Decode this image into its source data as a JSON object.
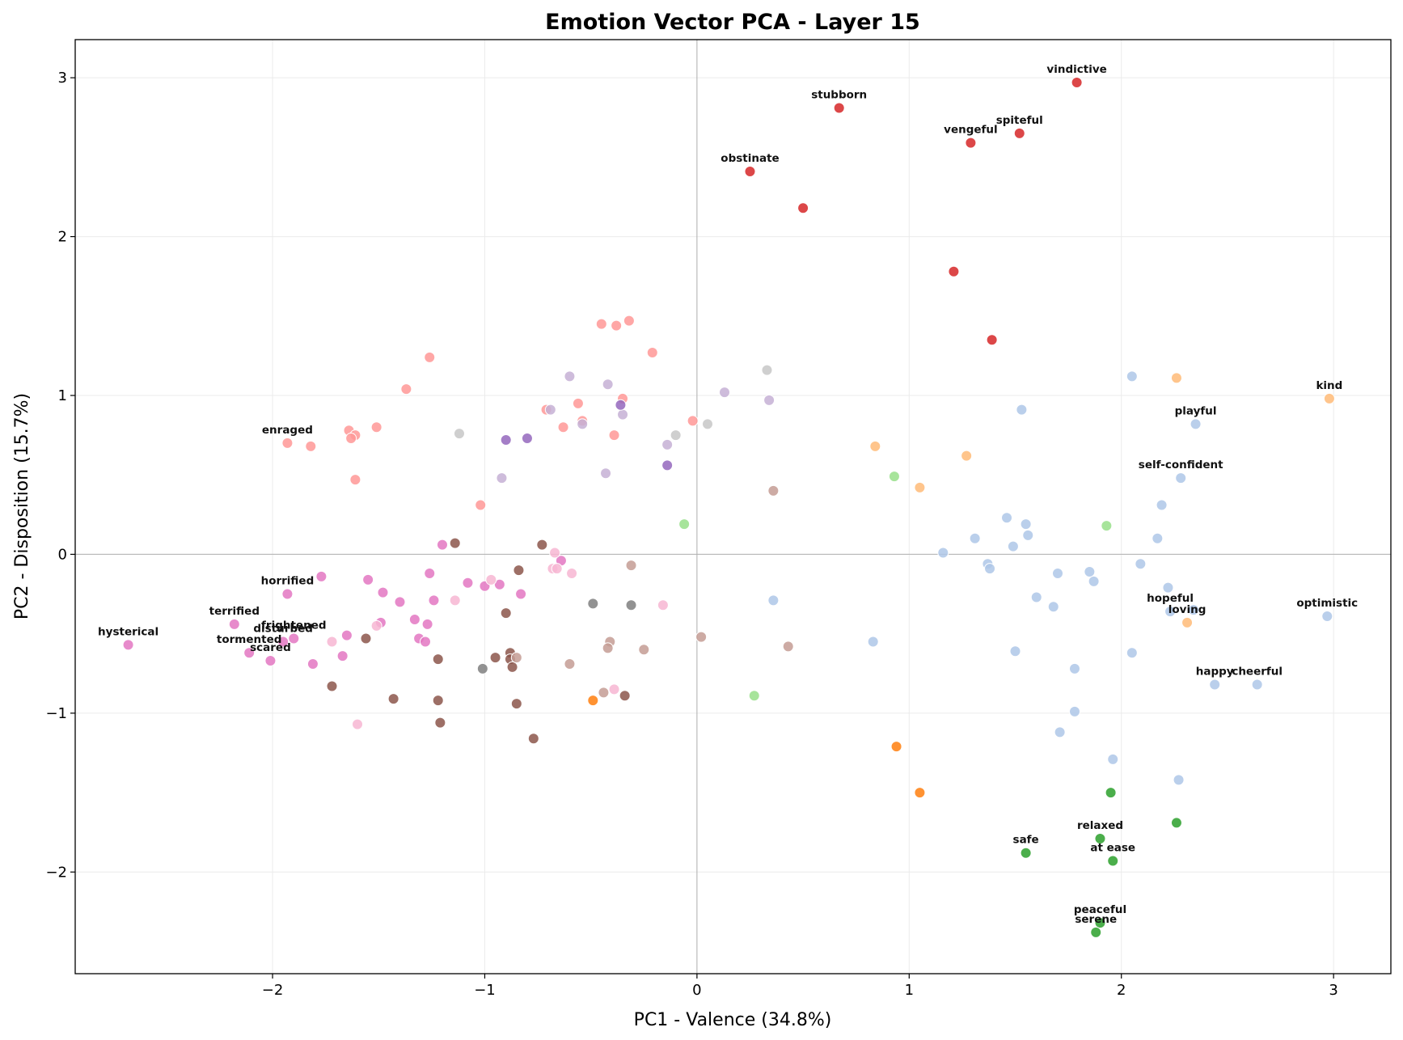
{
  "chart_data": {
    "type": "scatter",
    "title": "Emotion Vector PCA - Layer 15",
    "xlabel": "PC1 - Valence (34.8%)",
    "ylabel": "PC2 - Disposition (15.7%)",
    "xlim": [
      -2.93,
      3.27
    ],
    "ylim": [
      -2.64,
      3.24
    ],
    "xticks": [
      -2,
      -1,
      0,
      1,
      2,
      3
    ],
    "yticks": [
      -2,
      -1,
      0,
      1,
      2,
      3
    ],
    "xtick_labels": [
      "−2",
      "−1",
      "0",
      "1",
      "2",
      "3"
    ],
    "ytick_labels": [
      "−2",
      "−1",
      "0",
      "1",
      "2",
      "3"
    ],
    "grid": true,
    "zero_lines": true,
    "legend": "none",
    "series": [
      {
        "color": "#d62728",
        "points": [
          {
            "x": 1.79,
            "y": 2.97,
            "label": "vindictive"
          },
          {
            "x": 0.67,
            "y": 2.81,
            "label": "stubborn"
          },
          {
            "x": 1.52,
            "y": 2.65,
            "label": "spiteful"
          },
          {
            "x": 1.29,
            "y": 2.59,
            "label": "vengeful"
          },
          {
            "x": 0.25,
            "y": 2.41,
            "label": "obstinate"
          },
          {
            "x": 0.5,
            "y": 2.18
          },
          {
            "x": 1.21,
            "y": 1.78
          },
          {
            "x": 1.39,
            "y": 1.35
          }
        ]
      },
      {
        "color": "#ff9896",
        "points": [
          {
            "x": -0.45,
            "y": 1.45
          },
          {
            "x": -0.32,
            "y": 1.47
          },
          {
            "x": -0.38,
            "y": 1.44
          },
          {
            "x": -1.26,
            "y": 1.24
          },
          {
            "x": -0.21,
            "y": 1.27
          },
          {
            "x": -1.37,
            "y": 1.04
          },
          {
            "x": -0.35,
            "y": 0.98
          },
          {
            "x": -0.56,
            "y": 0.95
          },
          {
            "x": -0.71,
            "y": 0.91
          },
          {
            "x": -0.54,
            "y": 0.84
          },
          {
            "x": -0.63,
            "y": 0.8
          },
          {
            "x": -0.02,
            "y": 0.84
          },
          {
            "x": -1.51,
            "y": 0.8
          },
          {
            "x": -1.64,
            "y": 0.78
          },
          {
            "x": -1.61,
            "y": 0.75
          },
          {
            "x": -1.63,
            "y": 0.73
          },
          {
            "x": -0.39,
            "y": 0.75
          },
          {
            "x": -1.93,
            "y": 0.7,
            "label": "enraged"
          },
          {
            "x": -1.82,
            "y": 0.68
          },
          {
            "x": -1.61,
            "y": 0.47
          },
          {
            "x": -1.02,
            "y": 0.31
          }
        ]
      },
      {
        "color": "#c5b0d5",
        "points": [
          {
            "x": -0.6,
            "y": 1.12
          },
          {
            "x": -0.42,
            "y": 1.07
          },
          {
            "x": 0.13,
            "y": 1.02
          },
          {
            "x": 0.34,
            "y": 0.97
          },
          {
            "x": -0.69,
            "y": 0.91
          },
          {
            "x": -0.35,
            "y": 0.88
          },
          {
            "x": -0.54,
            "y": 0.82
          },
          {
            "x": -0.14,
            "y": 0.69
          },
          {
            "x": -0.43,
            "y": 0.51
          },
          {
            "x": -0.92,
            "y": 0.48
          }
        ]
      },
      {
        "color": "#9467bd",
        "points": [
          {
            "x": -0.36,
            "y": 0.94
          },
          {
            "x": -0.9,
            "y": 0.72
          },
          {
            "x": -0.8,
            "y": 0.73
          },
          {
            "x": -0.14,
            "y": 0.56
          }
        ]
      },
      {
        "color": "#c7c7c7",
        "points": [
          {
            "x": 0.33,
            "y": 1.16
          },
          {
            "x": -1.12,
            "y": 0.76
          },
          {
            "x": -0.1,
            "y": 0.75
          },
          {
            "x": 0.05,
            "y": 0.82
          }
        ]
      },
      {
        "color": "#7f7f7f",
        "points": [
          {
            "x": -0.49,
            "y": -0.31
          },
          {
            "x": -0.31,
            "y": -0.32
          },
          {
            "x": -1.01,
            "y": -0.72
          }
        ]
      },
      {
        "color": "#ffbb78",
        "points": [
          {
            "x": 2.26,
            "y": 1.11
          },
          {
            "x": 2.98,
            "y": 0.98,
            "label": "kind"
          },
          {
            "x": 0.84,
            "y": 0.68
          },
          {
            "x": 1.27,
            "y": 0.62
          },
          {
            "x": 1.05,
            "y": 0.42
          },
          {
            "x": 2.31,
            "y": -0.43,
            "label": "loving"
          }
        ]
      },
      {
        "color": "#ff7f0e",
        "points": [
          {
            "x": -0.49,
            "y": -0.92
          },
          {
            "x": 0.94,
            "y": -1.21
          },
          {
            "x": 1.05,
            "y": -1.5
          }
        ]
      },
      {
        "color": "#98df8a",
        "points": [
          {
            "x": 0.93,
            "y": 0.49
          },
          {
            "x": -0.06,
            "y": 0.19
          },
          {
            "x": 1.93,
            "y": 0.18
          },
          {
            "x": 0.27,
            "y": -0.89
          }
        ]
      },
      {
        "color": "#2ca02c",
        "points": [
          {
            "x": 1.95,
            "y": -1.5
          },
          {
            "x": 2.26,
            "y": -1.69
          },
          {
            "x": 1.9,
            "y": -1.79,
            "label": "relaxed"
          },
          {
            "x": 1.55,
            "y": -1.88,
            "label": "safe"
          },
          {
            "x": 1.96,
            "y": -1.93,
            "label": "at ease"
          },
          {
            "x": 1.9,
            "y": -2.32,
            "label": "peaceful"
          },
          {
            "x": 1.88,
            "y": -2.38,
            "label": "serene"
          }
        ]
      },
      {
        "color": "#aec7e8",
        "points": [
          {
            "x": 2.05,
            "y": 1.12
          },
          {
            "x": 1.53,
            "y": 0.91
          },
          {
            "x": 2.35,
            "y": 0.82,
            "label": "playful"
          },
          {
            "x": 2.28,
            "y": 0.48,
            "label": "self-confident"
          },
          {
            "x": 2.19,
            "y": 0.31
          },
          {
            "x": 1.46,
            "y": 0.23
          },
          {
            "x": 1.55,
            "y": 0.19
          },
          {
            "x": 1.56,
            "y": 0.12
          },
          {
            "x": 1.31,
            "y": 0.1
          },
          {
            "x": 2.17,
            "y": 0.1
          },
          {
            "x": 1.49,
            "y": 0.05
          },
          {
            "x": 1.16,
            "y": 0.01
          },
          {
            "x": 1.37,
            "y": -0.06
          },
          {
            "x": 1.38,
            "y": -0.09
          },
          {
            "x": 2.09,
            "y": -0.06
          },
          {
            "x": 1.7,
            "y": -0.12
          },
          {
            "x": 1.85,
            "y": -0.11
          },
          {
            "x": 1.87,
            "y": -0.17
          },
          {
            "x": 2.22,
            "y": -0.21
          },
          {
            "x": 1.6,
            "y": -0.27
          },
          {
            "x": 0.36,
            "y": -0.29
          },
          {
            "x": 1.68,
            "y": -0.33
          },
          {
            "x": 2.23,
            "y": -0.36,
            "label": "hopeful"
          },
          {
            "x": 2.34,
            "y": -0.35
          },
          {
            "x": 2.97,
            "y": -0.39,
            "label": "optimistic"
          },
          {
            "x": 0.83,
            "y": -0.55
          },
          {
            "x": 1.5,
            "y": -0.61
          },
          {
            "x": 2.05,
            "y": -0.62
          },
          {
            "x": 1.78,
            "y": -0.72
          },
          {
            "x": 2.44,
            "y": -0.82,
            "label": "happy"
          },
          {
            "x": 2.64,
            "y": -0.82,
            "label": "cheerful"
          },
          {
            "x": 1.78,
            "y": -0.99
          },
          {
            "x": 1.71,
            "y": -1.12
          },
          {
            "x": 1.96,
            "y": -1.29
          },
          {
            "x": 2.27,
            "y": -1.42
          }
        ]
      },
      {
        "color": "#e377c2",
        "points": [
          {
            "x": -2.68,
            "y": -0.57,
            "label": "hysterical"
          },
          {
            "x": -2.18,
            "y": -0.44,
            "label": "terrified"
          },
          {
            "x": -2.11,
            "y": -0.62,
            "label": "tormented"
          },
          {
            "x": -2.01,
            "y": -0.67,
            "label": "scared"
          },
          {
            "x": -1.93,
            "y": -0.25,
            "label": "horrified"
          },
          {
            "x": -1.9,
            "y": -0.53,
            "label": "frightened"
          },
          {
            "x": -1.95,
            "y": -0.55,
            "label": "disturbed"
          },
          {
            "x": -1.77,
            "y": -0.14
          },
          {
            "x": -1.81,
            "y": -0.69
          },
          {
            "x": -1.65,
            "y": -0.51
          },
          {
            "x": -1.67,
            "y": -0.64
          },
          {
            "x": -1.55,
            "y": -0.16
          },
          {
            "x": -1.48,
            "y": -0.24
          },
          {
            "x": -1.49,
            "y": -0.43
          },
          {
            "x": -1.4,
            "y": -0.3
          },
          {
            "x": -1.33,
            "y": -0.41
          },
          {
            "x": -1.31,
            "y": -0.53
          },
          {
            "x": -1.28,
            "y": -0.55
          },
          {
            "x": -1.27,
            "y": -0.44
          },
          {
            "x": -1.26,
            "y": -0.12
          },
          {
            "x": -1.24,
            "y": -0.29
          },
          {
            "x": -1.2,
            "y": 0.06
          },
          {
            "x": -1.08,
            "y": -0.18
          },
          {
            "x": -1.0,
            "y": -0.2
          },
          {
            "x": -0.93,
            "y": -0.19
          },
          {
            "x": -0.83,
            "y": -0.25
          },
          {
            "x": -0.64,
            "y": -0.04
          }
        ]
      },
      {
        "color": "#f7b6d2",
        "points": [
          {
            "x": -1.6,
            "y": -1.07
          },
          {
            "x": -1.72,
            "y": -0.55
          },
          {
            "x": -1.51,
            "y": -0.45
          },
          {
            "x": -1.14,
            "y": -0.29
          },
          {
            "x": -0.97,
            "y": -0.16
          },
          {
            "x": -0.67,
            "y": 0.01
          },
          {
            "x": -0.68,
            "y": -0.09
          },
          {
            "x": -0.66,
            "y": -0.09
          },
          {
            "x": -0.59,
            "y": -0.12
          },
          {
            "x": -0.16,
            "y": -0.32
          },
          {
            "x": -0.39,
            "y": -0.85
          }
        ]
      },
      {
        "color": "#8c564b",
        "points": [
          {
            "x": -1.14,
            "y": 0.07
          },
          {
            "x": -0.73,
            "y": 0.06
          },
          {
            "x": -0.84,
            "y": -0.1
          },
          {
            "x": -0.9,
            "y": -0.37
          },
          {
            "x": -1.56,
            "y": -0.53
          },
          {
            "x": -0.95,
            "y": -0.65
          },
          {
            "x": -0.88,
            "y": -0.62
          },
          {
            "x": -0.88,
            "y": -0.66
          },
          {
            "x": -0.87,
            "y": -0.71
          },
          {
            "x": -1.22,
            "y": -0.66
          },
          {
            "x": -1.72,
            "y": -0.83
          },
          {
            "x": -1.43,
            "y": -0.91
          },
          {
            "x": -1.22,
            "y": -0.92
          },
          {
            "x": -0.85,
            "y": -0.94
          },
          {
            "x": -0.34,
            "y": -0.89
          },
          {
            "x": -1.21,
            "y": -1.06
          },
          {
            "x": -0.77,
            "y": -1.16
          }
        ]
      },
      {
        "color": "#c49c94",
        "points": [
          {
            "x": 0.36,
            "y": 0.4
          },
          {
            "x": -0.31,
            "y": -0.07
          },
          {
            "x": -0.41,
            "y": -0.55
          },
          {
            "x": -0.42,
            "y": -0.59
          },
          {
            "x": -0.25,
            "y": -0.6
          },
          {
            "x": 0.02,
            "y": -0.52
          },
          {
            "x": 0.43,
            "y": -0.58
          },
          {
            "x": -0.85,
            "y": -0.65
          },
          {
            "x": -0.6,
            "y": -0.69
          },
          {
            "x": -0.44,
            "y": -0.87
          }
        ]
      }
    ]
  }
}
